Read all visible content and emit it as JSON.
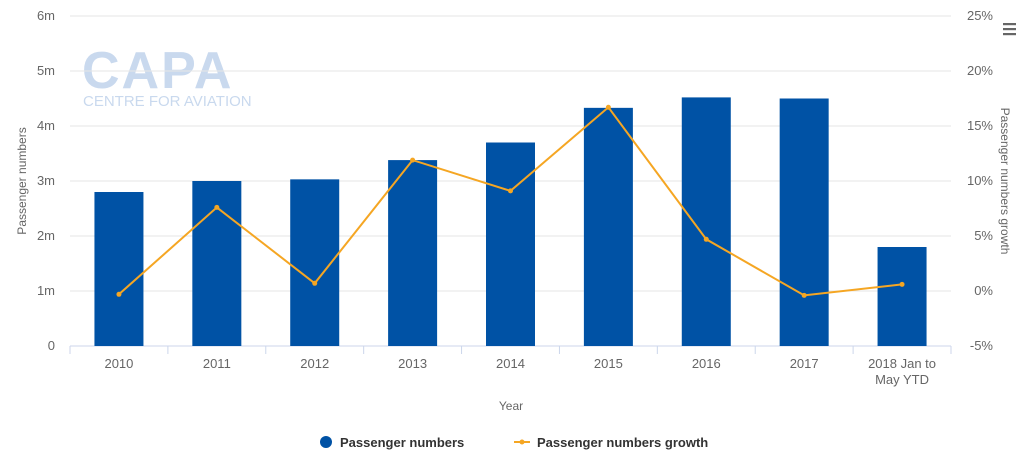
{
  "colors": {
    "bar": "#0052a5",
    "line": "#f5a623",
    "grid": "#e6e6e6",
    "axis": "#ccd6eb",
    "text": "#666666",
    "watermark": "#c9d9ee"
  },
  "watermark": {
    "main": "CAPA",
    "sub": "CENTRE FOR AVIATION"
  },
  "menu_icon": "hamburger-menu-icon",
  "chart_data": {
    "type": "bar",
    "categories": [
      "2010",
      "2011",
      "2012",
      "2013",
      "2014",
      "2015",
      "2016",
      "2017",
      "2018 Jan to May YTD"
    ],
    "category_lines": [
      [
        "2010"
      ],
      [
        "2011"
      ],
      [
        "2012"
      ],
      [
        "2013"
      ],
      [
        "2014"
      ],
      [
        "2015"
      ],
      [
        "2016"
      ],
      [
        "2017"
      ],
      [
        "2018 Jan to",
        "May YTD"
      ]
    ],
    "series": [
      {
        "name": "Passenger numbers",
        "type": "bar",
        "axis": "left",
        "values": [
          2.8,
          3.0,
          3.03,
          3.38,
          3.7,
          4.33,
          4.52,
          4.5,
          1.8
        ]
      },
      {
        "name": "Passenger numbers growth",
        "type": "line",
        "axis": "right",
        "values": [
          -0.3,
          7.6,
          0.7,
          11.9,
          9.1,
          16.7,
          4.7,
          -0.4,
          0.6
        ]
      }
    ],
    "xlabel": "Year",
    "ylabel": "Passenger numbers",
    "y2label": "Passenger numbers growth",
    "ylim": [
      0,
      6
    ],
    "y2lim": [
      -5,
      25
    ],
    "yticks": [
      "0",
      "1m",
      "2m",
      "3m",
      "4m",
      "5m",
      "6m"
    ],
    "y2ticks": [
      "-5%",
      "0%",
      "5%",
      "10%",
      "15%",
      "20%",
      "25%"
    ],
    "grid": true,
    "legend": "bottom-center"
  }
}
